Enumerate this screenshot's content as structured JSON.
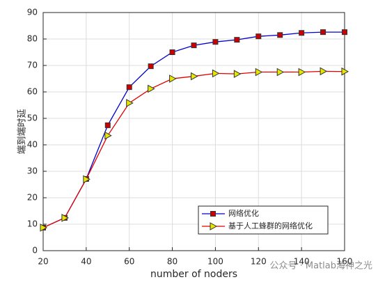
{
  "chart_data": {
    "type": "line",
    "x_label": "number of noders",
    "y_label": "端到端时延",
    "x": [
      20,
      30,
      40,
      50,
      60,
      70,
      80,
      90,
      100,
      110,
      120,
      130,
      140,
      150,
      160
    ],
    "series": [
      {
        "name": "网络优化",
        "color": "#0000cc",
        "marker": "square",
        "marker_color": "#cc0000",
        "values": [
          8.7,
          12.4,
          27.1,
          47.4,
          61.8,
          69.7,
          75,
          77.6,
          78.9,
          79.7,
          81,
          81.5,
          82.3,
          82.6,
          82.6
        ]
      },
      {
        "name": "基于人工蜂群的网络优化",
        "color": "#e00000",
        "marker": "triangle-right",
        "marker_color": "#e6e600",
        "values": [
          8.7,
          12.4,
          27,
          43.5,
          55.8,
          61.2,
          65,
          65.9,
          67,
          66.8,
          67.5,
          67.5,
          67.5,
          67.8,
          67.7
        ]
      }
    ],
    "xlim": [
      20,
      160
    ],
    "xticks": [
      20,
      40,
      60,
      80,
      100,
      120,
      140,
      160
    ],
    "ylim": [
      0,
      90
    ],
    "yticks": [
      0,
      10,
      20,
      30,
      40,
      50,
      60,
      70,
      80,
      90
    ],
    "grid": true,
    "legend": "lower right",
    "watermark": "公众号 · Matlab海神之光"
  }
}
